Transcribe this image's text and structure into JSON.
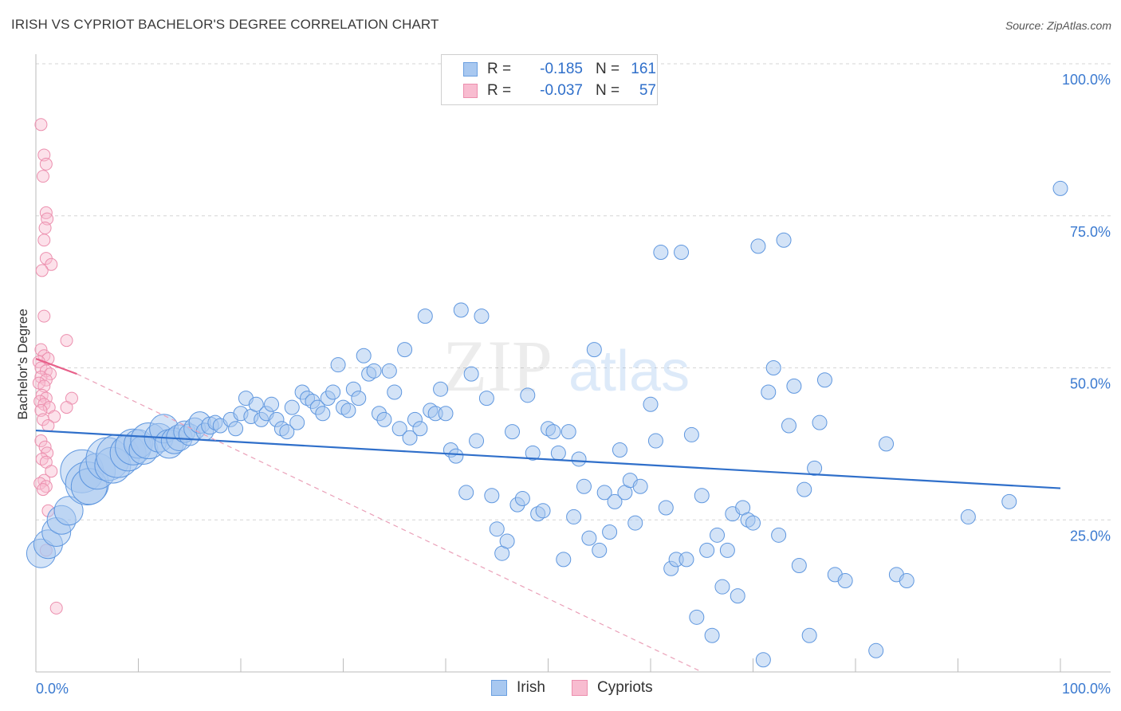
{
  "header": {
    "title": "IRISH VS CYPRIOT BACHELOR'S DEGREE CORRELATION CHART",
    "source": "Source: ZipAtlas.com"
  },
  "watermark": {
    "zip": "ZIP",
    "atlas": "atlas"
  },
  "legend": {
    "rows": [
      {
        "r_label": "R =",
        "r_value": "-0.185",
        "n_label": "N =",
        "n_value": "161",
        "color": "#a8c8f0",
        "stroke": "#6a9fe0"
      },
      {
        "r_label": "R =",
        "r_value": "-0.037",
        "n_label": "N =",
        "n_value": "57",
        "color": "#f8bcd0",
        "stroke": "#ec8fae"
      }
    ]
  },
  "bottom_legend": [
    {
      "label": "Irish",
      "color": "#a8c8f0",
      "stroke": "#6a9fe0"
    },
    {
      "label": "Cypriots",
      "color": "#f8bcd0",
      "stroke": "#ec8fae"
    }
  ],
  "chart_data": {
    "type": "scatter",
    "xlabel": "",
    "ylabel": "Bachelor's Degree",
    "xlim": [
      0,
      100
    ],
    "ylim": [
      0,
      100
    ],
    "x_tick_labels": [
      "0.0%",
      "100.0%"
    ],
    "y_tick_labels": [
      "100.0%",
      "75.0%",
      "50.0%",
      "25.0%"
    ],
    "y_tick_values": [
      100,
      75,
      50,
      25
    ],
    "grid": true,
    "colors": {
      "irish": "#4a8ee0",
      "cypriots": "#ec7fa3",
      "irish_line": "#2f6fca",
      "cypriots_line": "#e8608a"
    },
    "series": [
      {
        "name": "Irish",
        "trend": {
          "x0": 0,
          "y0": 39.7,
          "x1": 100,
          "y1": 30.2
        },
        "points": [
          [
            0.5,
            19.5,
            2
          ],
          [
            1.2,
            21,
            2
          ],
          [
            2,
            23,
            2
          ],
          [
            2.5,
            25,
            2
          ],
          [
            3.2,
            26.5,
            2
          ],
          [
            4.5,
            33,
            3
          ],
          [
            5,
            31,
            3
          ],
          [
            5.2,
            30.5,
            2.5
          ],
          [
            6,
            33,
            2.5
          ],
          [
            7,
            35,
            3
          ],
          [
            7.5,
            34,
            2.5
          ],
          [
            8,
            35.5,
            3
          ],
          [
            9,
            36,
            2.5
          ],
          [
            9.5,
            37,
            2.5
          ],
          [
            10,
            37.5,
            2
          ],
          [
            10.5,
            36.5,
            2
          ],
          [
            11,
            38,
            2.5
          ],
          [
            12,
            38.5,
            2
          ],
          [
            12.5,
            40,
            2
          ],
          [
            13,
            37.5,
            2
          ],
          [
            13.5,
            38,
            1.8
          ],
          [
            14,
            38.5,
            1.8
          ],
          [
            14.5,
            39.5,
            1.5
          ],
          [
            15,
            39,
            1.5
          ],
          [
            15.5,
            40,
            1.5
          ],
          [
            16,
            41,
            1.5
          ],
          [
            16.5,
            39.5,
            1.2
          ],
          [
            17,
            40.5,
            1.2
          ],
          [
            17.5,
            41,
            1
          ],
          [
            18,
            40.5,
            1
          ],
          [
            19,
            41.5,
            1
          ],
          [
            19.5,
            40,
            1
          ],
          [
            20,
            42.5,
            1
          ],
          [
            20.5,
            45,
            1
          ],
          [
            21,
            42,
            1
          ],
          [
            21.5,
            44,
            1
          ],
          [
            22,
            41.5,
            1
          ],
          [
            22.5,
            42.5,
            1
          ],
          [
            23,
            44,
            1
          ],
          [
            23.5,
            41.5,
            1
          ],
          [
            24,
            40,
            1
          ],
          [
            24.5,
            39.5,
            1
          ],
          [
            25,
            43.5,
            1
          ],
          [
            25.5,
            41,
            1
          ],
          [
            26,
            46,
            1
          ],
          [
            26.5,
            45,
            1
          ],
          [
            27,
            44.5,
            1
          ],
          [
            27.5,
            43.5,
            1
          ],
          [
            28,
            42.5,
            1
          ],
          [
            28.5,
            45,
            1
          ],
          [
            29,
            46,
            1
          ],
          [
            29.5,
            50.5,
            1
          ],
          [
            30,
            43.5,
            1
          ],
          [
            30.5,
            43,
            1
          ],
          [
            31,
            46.5,
            1
          ],
          [
            31.5,
            45,
            1
          ],
          [
            32,
            52,
            1
          ],
          [
            32.5,
            49,
            1
          ],
          [
            33,
            49.5,
            1
          ],
          [
            33.5,
            42.5,
            1
          ],
          [
            34,
            41.5,
            1
          ],
          [
            34.5,
            49.5,
            1
          ],
          [
            35,
            46,
            1
          ],
          [
            35.5,
            40,
            1
          ],
          [
            36,
            53,
            1
          ],
          [
            36.5,
            38.5,
            1
          ],
          [
            37,
            41.5,
            1
          ],
          [
            37.5,
            40,
            1
          ],
          [
            38,
            58.5,
            1
          ],
          [
            38.5,
            43,
            1
          ],
          [
            39,
            42.5,
            1
          ],
          [
            39.5,
            46.5,
            1
          ],
          [
            40,
            42.5,
            1
          ],
          [
            40.5,
            36.5,
            1
          ],
          [
            41,
            35.5,
            1
          ],
          [
            41.5,
            59.5,
            1
          ],
          [
            42,
            29.5,
            1
          ],
          [
            42.5,
            49,
            1
          ],
          [
            43,
            38,
            1
          ],
          [
            43.5,
            58.5,
            1
          ],
          [
            44,
            45,
            1
          ],
          [
            44.5,
            29,
            1
          ],
          [
            45,
            23.5,
            1
          ],
          [
            45.5,
            19.5,
            1
          ],
          [
            46,
            21.5,
            1
          ],
          [
            46.5,
            39.5,
            1
          ],
          [
            47,
            27.5,
            1
          ],
          [
            47.5,
            28.5,
            1
          ],
          [
            48,
            45.5,
            1
          ],
          [
            48.5,
            36,
            1
          ],
          [
            49,
            26,
            1
          ],
          [
            49.5,
            26.5,
            1
          ],
          [
            50,
            40,
            1
          ],
          [
            50.5,
            39.5,
            1
          ],
          [
            51,
            36,
            1
          ],
          [
            51.5,
            18.5,
            1
          ],
          [
            52,
            39.5,
            1
          ],
          [
            52.5,
            25.5,
            1
          ],
          [
            53,
            35,
            1
          ],
          [
            53.5,
            30.5,
            1
          ],
          [
            54,
            22,
            1
          ],
          [
            54.5,
            53,
            1
          ],
          [
            55,
            20,
            1
          ],
          [
            55.5,
            29.5,
            1
          ],
          [
            56,
            23,
            1
          ],
          [
            56.5,
            28,
            1
          ],
          [
            57,
            36.5,
            1
          ],
          [
            57.5,
            29.5,
            1
          ],
          [
            58,
            31.5,
            1
          ],
          [
            58.5,
            24.5,
            1
          ],
          [
            59,
            30.5,
            1
          ],
          [
            60,
            44,
            1
          ],
          [
            60.5,
            38,
            1
          ],
          [
            61,
            69,
            1
          ],
          [
            61.5,
            27,
            1
          ],
          [
            62,
            17,
            1
          ],
          [
            62.5,
            18.5,
            1
          ],
          [
            63,
            69,
            1
          ],
          [
            63.5,
            18.5,
            1
          ],
          [
            64,
            39,
            1
          ],
          [
            64.5,
            9,
            1
          ],
          [
            65,
            29,
            1
          ],
          [
            65.5,
            20,
            1
          ],
          [
            66,
            6,
            1
          ],
          [
            66.5,
            22.5,
            1
          ],
          [
            67,
            14,
            1
          ],
          [
            67.5,
            20,
            1
          ],
          [
            68,
            26,
            1
          ],
          [
            68.5,
            12.5,
            1
          ],
          [
            69,
            27,
            1
          ],
          [
            69.5,
            25,
            1
          ],
          [
            70,
            24.5,
            1
          ],
          [
            70.5,
            70,
            1
          ],
          [
            71,
            2,
            1
          ],
          [
            71.5,
            46,
            1
          ],
          [
            72,
            50,
            1
          ],
          [
            72.5,
            22.5,
            1
          ],
          [
            73,
            71,
            1
          ],
          [
            73.5,
            40.5,
            1
          ],
          [
            74,
            47,
            1
          ],
          [
            74.5,
            17.5,
            1
          ],
          [
            75,
            30,
            1
          ],
          [
            75.5,
            6,
            1
          ],
          [
            76,
            33.5,
            1
          ],
          [
            76.5,
            41,
            1
          ],
          [
            77,
            48,
            1
          ],
          [
            78,
            16,
            1
          ],
          [
            79,
            15,
            1
          ],
          [
            82,
            3.5,
            1
          ],
          [
            83,
            37.5,
            1
          ],
          [
            84,
            16,
            1
          ],
          [
            85,
            15,
            1
          ],
          [
            91,
            25.5,
            1
          ],
          [
            95,
            28,
            1
          ],
          [
            100,
            79.5,
            1
          ]
        ]
      },
      {
        "name": "Cypriots",
        "trend": {
          "x0": 0,
          "y0": 51.5,
          "x1": 4,
          "y1": 49
        },
        "trend_ext": {
          "x0": 4,
          "y0": 49,
          "x1": 65,
          "y1": 0
        },
        "points": [
          [
            0.5,
            90
          ],
          [
            0.8,
            85
          ],
          [
            1,
            83.5
          ],
          [
            0.7,
            81.5
          ],
          [
            1,
            75.5
          ],
          [
            1.1,
            74.5
          ],
          [
            0.9,
            73
          ],
          [
            0.8,
            71
          ],
          [
            1,
            68
          ],
          [
            1.5,
            67
          ],
          [
            0.6,
            66
          ],
          [
            0.8,
            58.5
          ],
          [
            3,
            54.5
          ],
          [
            0.5,
            53
          ],
          [
            0.8,
            52
          ],
          [
            1.2,
            51.5
          ],
          [
            0.3,
            51
          ],
          [
            0.5,
            50
          ],
          [
            1,
            49.5
          ],
          [
            1.4,
            49
          ],
          [
            0.5,
            48.5
          ],
          [
            1,
            48
          ],
          [
            0.3,
            47.5
          ],
          [
            0.8,
            47
          ],
          [
            0.6,
            45.5
          ],
          [
            1,
            45
          ],
          [
            0.4,
            44.5
          ],
          [
            3.5,
            45
          ],
          [
            0.8,
            44
          ],
          [
            1.3,
            43.5
          ],
          [
            0.5,
            43
          ],
          [
            3,
            43.5
          ],
          [
            1.8,
            42
          ],
          [
            0.7,
            41.5
          ],
          [
            1.2,
            40.5
          ],
          [
            0.5,
            38
          ],
          [
            0.9,
            37
          ],
          [
            1.1,
            36
          ],
          [
            0.6,
            35
          ],
          [
            1,
            34.5
          ],
          [
            1.5,
            33
          ],
          [
            0.8,
            31.5
          ],
          [
            0.4,
            31
          ],
          [
            1,
            30.5
          ],
          [
            0.7,
            30
          ],
          [
            1.2,
            26.5
          ],
          [
            1,
            20
          ],
          [
            2,
            10.5
          ]
        ]
      }
    ]
  }
}
